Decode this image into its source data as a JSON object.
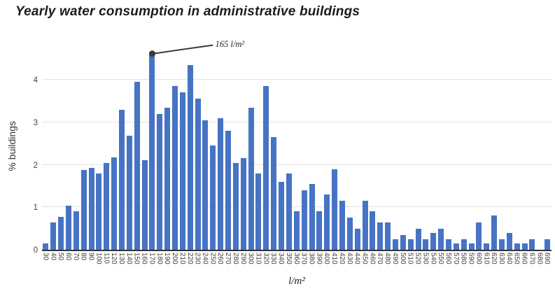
{
  "title": "Yearly water consumption in administrative buildings",
  "y_axis": {
    "label": "% buildings",
    "ticks": [
      0,
      1,
      2,
      3,
      4
    ]
  },
  "x_axis": {
    "label": "l/m²"
  },
  "annotation": {
    "text": "165 l/m²",
    "target_category": "170"
  },
  "colors": {
    "bar": "#4673c4",
    "gridline": "#e2e2e2",
    "axis_line": "#333333",
    "annotation": "#3a3a3a",
    "tick_text": "#3f3f3f",
    "title_text": "#1c1c1c"
  },
  "chart_data": {
    "type": "bar",
    "title": "Yearly water consumption in administrative buildings",
    "xlabel": "l/m²",
    "ylabel": "% buildings",
    "ylim": [
      0,
      4.89
    ],
    "grid": "horizontal",
    "legend": "none",
    "categories": [
      "30",
      "40",
      "50",
      "60",
      "70",
      "80",
      "90",
      "100",
      "110",
      "120",
      "130",
      "140",
      "150",
      "160",
      "170",
      "180",
      "190",
      "200",
      "210",
      "220",
      "230",
      "240",
      "250",
      "260",
      "270",
      "280",
      "290",
      "300",
      "310",
      "320",
      "330",
      "340",
      "350",
      "360",
      "370",
      "380",
      "390",
      "400",
      "410",
      "420",
      "430",
      "440",
      "450",
      "460",
      "470",
      "480",
      "490",
      "500",
      "510",
      "520",
      "530",
      "540",
      "550",
      "560",
      "570",
      "580",
      "590",
      "600",
      "610",
      "620",
      "630",
      "640",
      "650",
      "660",
      "670",
      "680",
      "690"
    ],
    "values": [
      0.15,
      0.65,
      0.78,
      1.03,
      0.9,
      1.88,
      1.92,
      1.8,
      2.05,
      2.17,
      3.3,
      2.69,
      3.95,
      2.1,
      4.65,
      3.2,
      3.35,
      3.85,
      3.7,
      4.35,
      3.55,
      3.05,
      2.45,
      3.1,
      2.8,
      2.05,
      2.15,
      3.35,
      1.8,
      3.85,
      2.65,
      1.6,
      1.8,
      0.9,
      1.4,
      1.55,
      0.9,
      1.3,
      1.9,
      1.15,
      0.75,
      0.5,
      1.15,
      0.9,
      0.65,
      0.65,
      0.25,
      0.35,
      0.25,
      0.5,
      0.25,
      0.4,
      0.5,
      0.25,
      0.15,
      0.25,
      0.15,
      0.65,
      0.15,
      0.8,
      0.25,
      0.4,
      0.15,
      0.15,
      0.25,
      0,
      0.25
    ],
    "annotation": {
      "text": "165 l/m²",
      "category": "170",
      "value": 4.65
    }
  }
}
